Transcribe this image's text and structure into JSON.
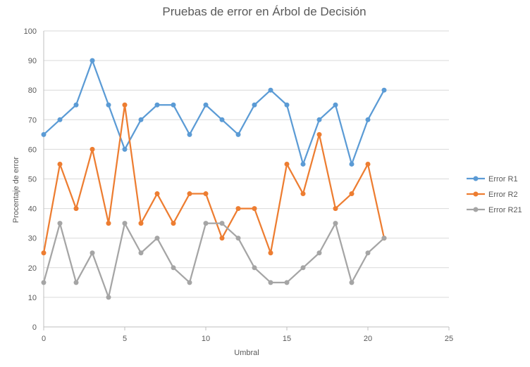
{
  "chart_data": {
    "type": "scatter",
    "title": "Pruebas de error en Árbol de Decisión",
    "xlabel": "Umbral",
    "ylabel": "Procentaje de error",
    "xlim": [
      0,
      25
    ],
    "ylim": [
      0,
      100
    ],
    "xticks": [
      0,
      5,
      10,
      15,
      20,
      25
    ],
    "yticks": [
      0,
      10,
      20,
      30,
      40,
      50,
      60,
      70,
      80,
      90,
      100
    ],
    "grid": "horizontal",
    "legend_position": "right",
    "x": [
      0,
      1,
      2,
      3,
      4,
      5,
      6,
      7,
      8,
      9,
      10,
      11,
      12,
      13,
      14,
      15,
      16,
      17,
      18,
      19,
      20,
      21
    ],
    "series": [
      {
        "name": "Error R1",
        "color": "#5B9BD5",
        "values": [
          65,
          70,
          75,
          90,
          75,
          60,
          70,
          75,
          75,
          65,
          75,
          70,
          65,
          75,
          80,
          75,
          55,
          70,
          75,
          55,
          70,
          80
        ]
      },
      {
        "name": "Error R2",
        "color": "#ED7D31",
        "values": [
          25,
          55,
          40,
          60,
          35,
          75,
          35,
          45,
          35,
          45,
          45,
          30,
          40,
          40,
          25,
          55,
          45,
          65,
          40,
          45,
          55,
          30
        ]
      },
      {
        "name": "Error R21",
        "color": "#A5A5A5",
        "values": [
          15,
          35,
          15,
          25,
          10,
          35,
          25,
          30,
          20,
          15,
          35,
          35,
          30,
          20,
          15,
          15,
          20,
          25,
          35,
          15,
          25,
          30
        ]
      }
    ]
  }
}
